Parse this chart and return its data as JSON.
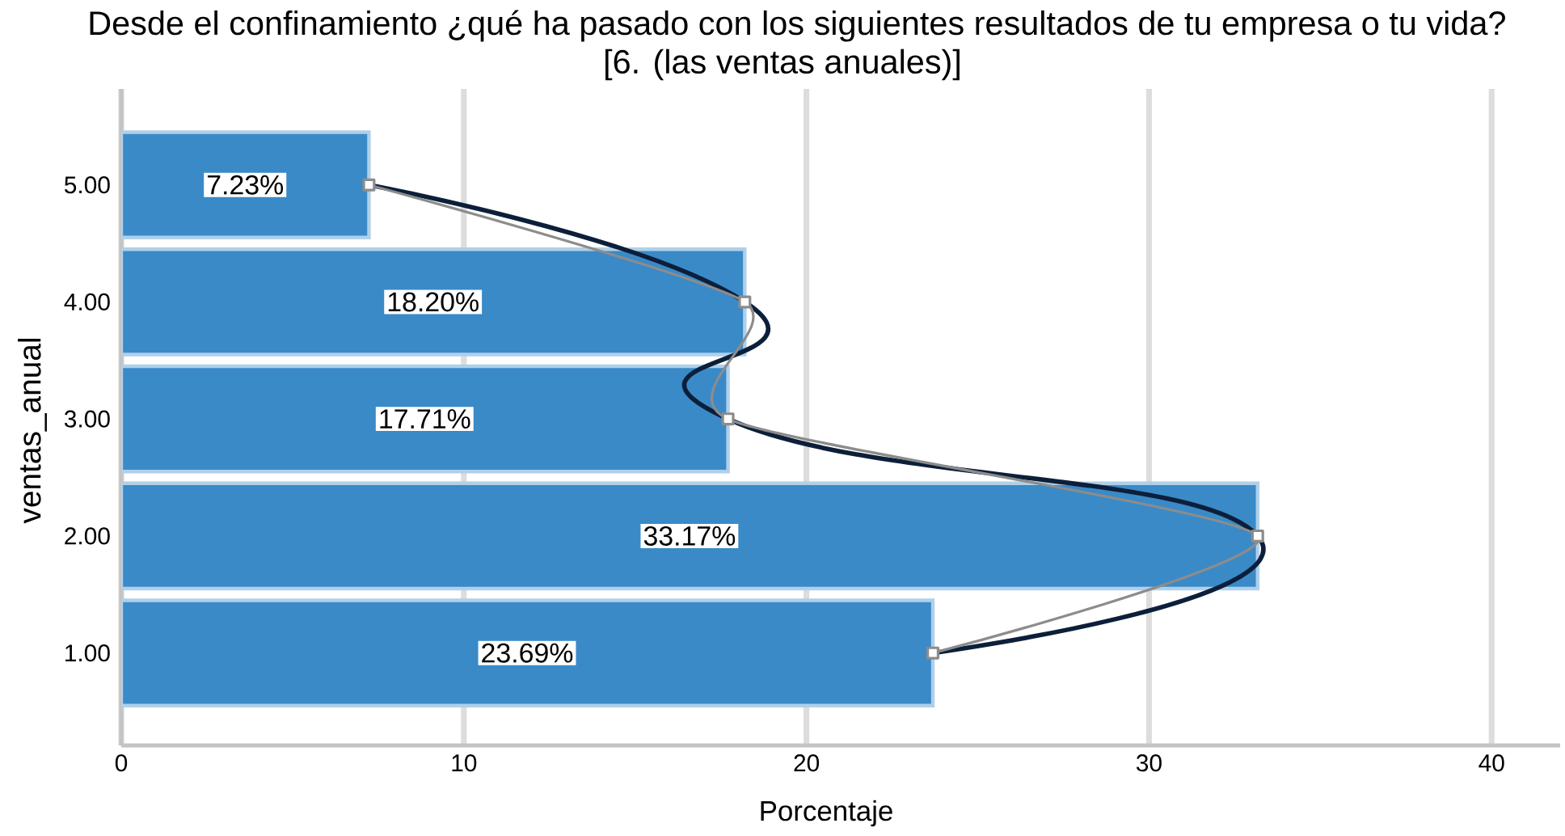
{
  "chart_data": {
    "type": "bar",
    "orientation": "horizontal",
    "title": "Desde el confinamiento ¿qué ha pasado con los siguientes resultados de tu empresa o tu vida?",
    "subtitle": "[6. (las ventas anuales)]",
    "xlabel": "Porcentaje",
    "ylabel": "ventas_anual",
    "categories": [
      "5.00",
      "4.00",
      "3.00",
      "2.00",
      "1.00"
    ],
    "series": [
      {
        "color": "#3a8ac8",
        "values": [
          7.23,
          18.2,
          17.71,
          33.17,
          23.69
        ],
        "value_labels": [
          "7.23%",
          "18.20%",
          "17.71%",
          "33.17%",
          "23.69%"
        ]
      },
      {
        "type": "line",
        "color": "#0c1f3a",
        "values": [
          7.23,
          18.2,
          17.71,
          33.17,
          23.69
        ]
      },
      {
        "type": "line",
        "color": "#8c8c8c",
        "values": [
          7.23,
          18.2,
          17.71,
          33.17,
          23.69
        ],
        "marker": "square"
      }
    ],
    "xlim": [
      0,
      42
    ],
    "xticks": [
      0,
      10,
      20,
      30,
      40
    ],
    "grid": "x"
  }
}
